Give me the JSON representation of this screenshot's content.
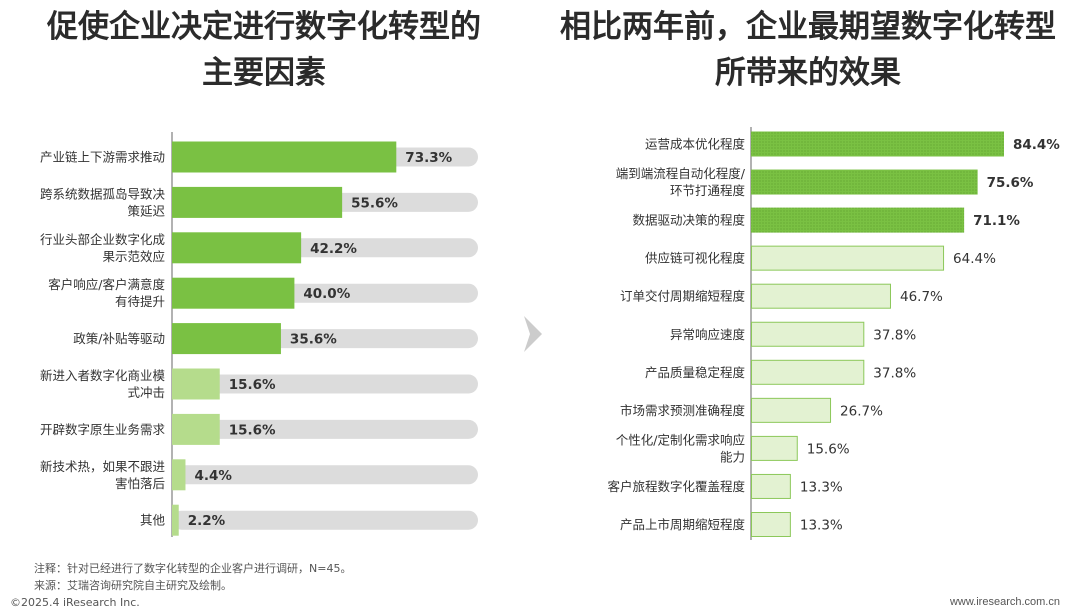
{
  "left_title": {
    "line1": "促使企业决定进行数字化转型的",
    "line2": "主要因素"
  },
  "right_title": {
    "line1": "相比两年前，企业最期望数字化转型",
    "line2": "所带来的效果"
  },
  "chart_data": [
    {
      "type": "bar",
      "orientation": "horizontal",
      "title": "促使企业决定进行数字化转型的主要因素",
      "xlim": [
        0,
        100
      ],
      "unit": "%",
      "categories": [
        [
          "产业链上下游需求推动"
        ],
        [
          "跨系统数据孤岛导致决",
          "策延迟"
        ],
        [
          "行业头部企业数字化成",
          "果示范效应"
        ],
        [
          "客户响应/客户满意度",
          "有待提升"
        ],
        [
          "政策/补贴等驱动"
        ],
        [
          "新进入者数字化商业模",
          "式冲击"
        ],
        [
          "开辟数字原生业务需求"
        ],
        [
          "新技术热，如果不跟进",
          "害怕落后"
        ],
        [
          "其他"
        ]
      ],
      "values": [
        73.3,
        55.6,
        42.2,
        40.0,
        35.6,
        15.6,
        15.6,
        4.4,
        2.2
      ],
      "value_labels": [
        "73.3%",
        "55.6%",
        "42.2%",
        "40.0%",
        "35.6%",
        "15.6%",
        "15.6%",
        "4.4%",
        "2.2%"
      ],
      "colors": {
        "highlight": "#7ac143",
        "normal": "#b5dc8c",
        "track": "#dcdcdc"
      },
      "highlight_count": 5
    },
    {
      "type": "bar",
      "orientation": "horizontal",
      "title": "相比两年前，企业最期望数字化转型所带来的效果",
      "xlim": [
        0,
        100
      ],
      "unit": "%",
      "categories": [
        [
          "运营成本优化程度"
        ],
        [
          "端到端流程自动化程度/",
          "环节打通程度"
        ],
        [
          "数据驱动决策的程度"
        ],
        [
          "供应链可视化程度"
        ],
        [
          "订单交付周期缩短程度"
        ],
        [
          "异常响应速度"
        ],
        [
          "产品质量稳定程度"
        ],
        [
          "市场需求预测准确程度"
        ],
        [
          "个性化/定制化需求响应",
          "能力"
        ],
        [
          "客户旅程数字化覆盖程度"
        ],
        [
          "产品上市周期缩短程度"
        ]
      ],
      "values": [
        84.4,
        75.6,
        71.1,
        64.4,
        46.7,
        37.8,
        37.8,
        26.7,
        15.6,
        13.3,
        13.3
      ],
      "value_labels": [
        "84.4%",
        "75.6%",
        "71.1%",
        "64.4%",
        "46.7%",
        "37.8%",
        "37.8%",
        "26.7%",
        "15.6%",
        "13.3%",
        "13.3%"
      ],
      "colors": {
        "highlight": "#7ac143",
        "highlight_pattern": "#66ad33",
        "normal_fill": "#e3f2d2",
        "normal_stroke": "#8cc85a"
      },
      "highlight_count": 3
    }
  ],
  "footer": {
    "note": "注释：针对已经进行了数字化转型的企业客户进行调研，N=45。",
    "source": "来源：艾瑞咨询研究院自主研究及绘制。",
    "copyright": "©2025.4 iResearch Inc.",
    "website": "www.iresearch.com.cn"
  },
  "colors": {
    "title": "#2b2b2b",
    "axis": "#666666",
    "arrow": "#cccccc"
  }
}
